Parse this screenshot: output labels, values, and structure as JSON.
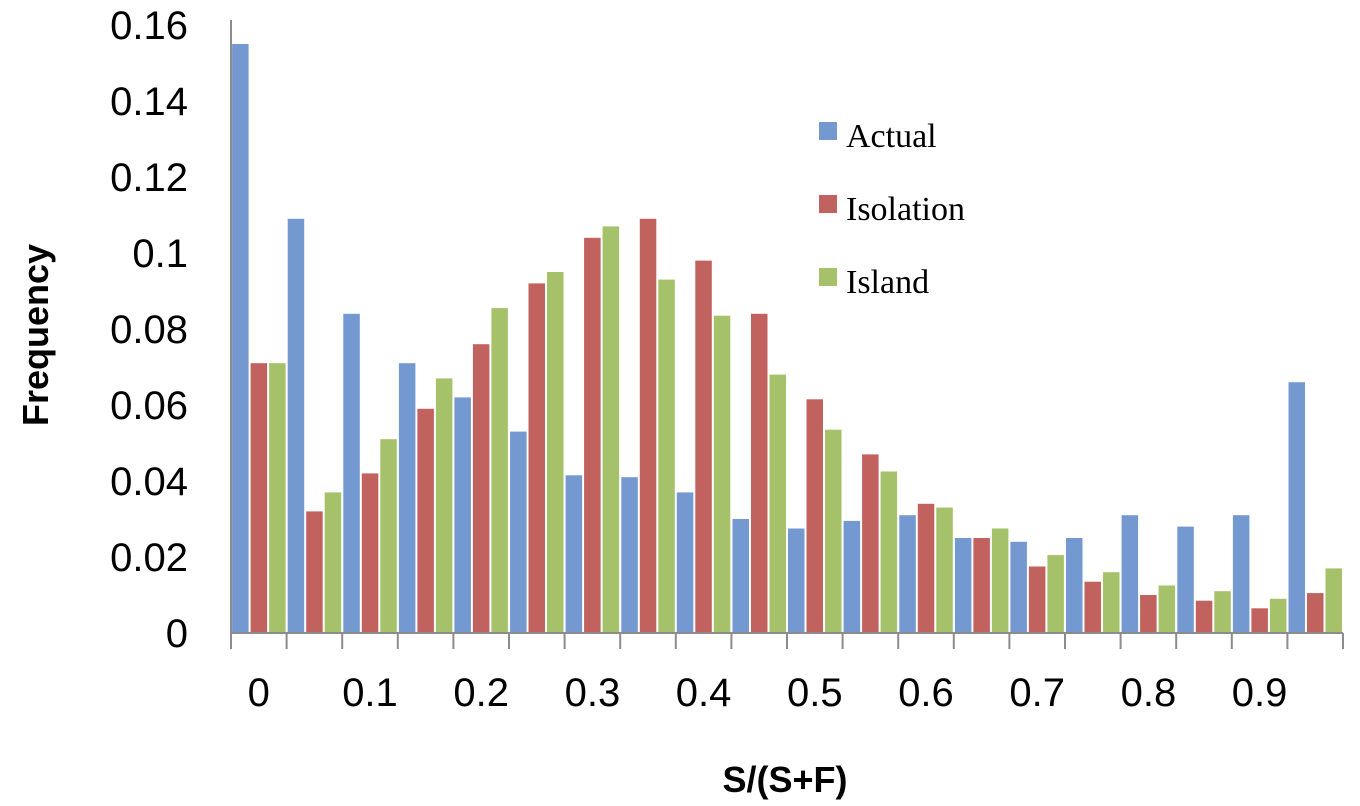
{
  "chart_data": {
    "type": "bar",
    "title": "",
    "xlabel": "S/(S+F)",
    "ylabel": "Frequency",
    "ylim": [
      0,
      0.16
    ],
    "yticks": [
      0,
      0.02,
      0.04,
      0.06,
      0.08,
      0.1,
      0.12,
      0.14,
      0.16
    ],
    "ytick_labels": [
      "0",
      "0.02",
      "0.04",
      "0.06",
      "0.08",
      "0.1",
      "0.12",
      "0.14",
      "0.16"
    ],
    "xtick_labels": [
      "0",
      "0.1",
      "0.2",
      "0.3",
      "0.4",
      "0.5",
      "0.6",
      "0.7",
      "0.8",
      "0.9"
    ],
    "categories": [
      "0",
      "0.05",
      "0.1",
      "0.15",
      "0.2",
      "0.25",
      "0.3",
      "0.35",
      "0.4",
      "0.45",
      "0.5",
      "0.55",
      "0.6",
      "0.65",
      "0.7",
      "0.75",
      "0.8",
      "0.85",
      "0.9",
      "0.95"
    ],
    "grid": false,
    "legend_position": "top-right",
    "series": [
      {
        "name": "Actual",
        "color": "#7399d0",
        "values": [
          0.155,
          0.109,
          0.084,
          0.071,
          0.062,
          0.053,
          0.0415,
          0.041,
          0.037,
          0.03,
          0.0275,
          0.0295,
          0.031,
          0.025,
          0.024,
          0.025,
          0.031,
          0.028,
          0.031,
          0.066
        ]
      },
      {
        "name": "Isolation",
        "color": "#c1625e",
        "values": [
          0.071,
          0.032,
          0.042,
          0.059,
          0.076,
          0.092,
          0.104,
          0.109,
          0.098,
          0.084,
          0.0615,
          0.047,
          0.034,
          0.025,
          0.0175,
          0.0135,
          0.01,
          0.0085,
          0.0065,
          0.0105
        ]
      },
      {
        "name": "Island",
        "color": "#a5c26a",
        "values": [
          0.071,
          0.037,
          0.051,
          0.067,
          0.0855,
          0.095,
          0.107,
          0.093,
          0.0835,
          0.068,
          0.0535,
          0.0425,
          0.033,
          0.0275,
          0.0205,
          0.016,
          0.0125,
          0.011,
          0.009,
          0.017
        ]
      }
    ]
  }
}
